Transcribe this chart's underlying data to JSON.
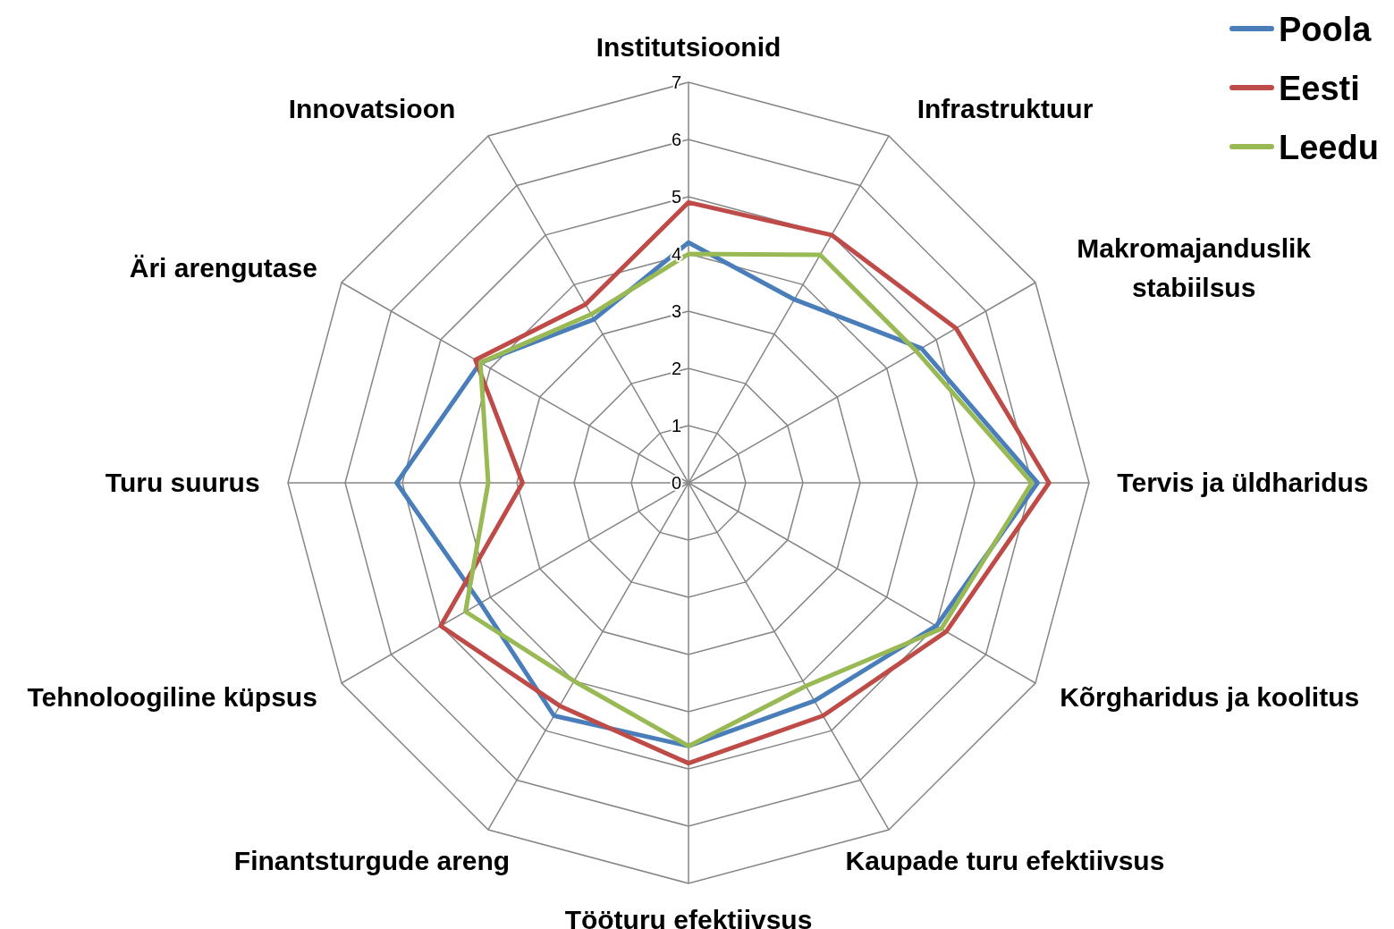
{
  "chart_data": {
    "type": "radar",
    "categories": [
      "Institutsioonid",
      "Infrastruktuur",
      "Makromajanduslik stabiilsus",
      "Tervis ja üldharidus",
      "Kõrgharidus ja koolitus",
      "Kaupade turu efektiivsus",
      "Tööturu efektiivsus",
      "Finantsturgude areng",
      "Tehnoloogiline küpsus",
      "Turu suurus",
      "Äri arengutase",
      "Innovatsioon"
    ],
    "series": [
      {
        "name": "Poola",
        "color": "#4a7ebb",
        "values": [
          4.2,
          3.7,
          4.7,
          6.1,
          5.0,
          4.4,
          4.6,
          4.7,
          4.2,
          5.1,
          4.2,
          3.3
        ]
      },
      {
        "name": "Eesti",
        "color": "#be4b48",
        "values": [
          4.9,
          5.0,
          5.4,
          6.3,
          5.2,
          4.7,
          4.9,
          4.5,
          5.0,
          2.9,
          4.3,
          3.6
        ]
      },
      {
        "name": "Leedu",
        "color": "#98b954",
        "values": [
          4.0,
          4.6,
          4.6,
          6.0,
          5.1,
          4.1,
          4.6,
          4.0,
          4.5,
          3.5,
          4.2,
          3.4
        ]
      }
    ],
    "ylim": [
      0,
      7
    ],
    "yticks": [
      0,
      1,
      2,
      3,
      4,
      5,
      6,
      7
    ],
    "grid": true,
    "legend": "top right",
    "line_style": "solid",
    "marker": "none"
  }
}
